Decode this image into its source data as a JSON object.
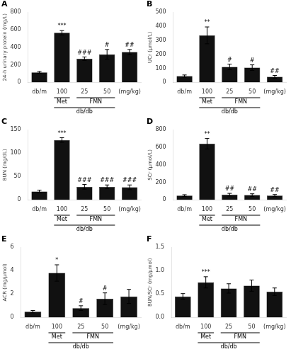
{
  "chart_data": [
    {
      "type": "bar",
      "title": "A",
      "ylabel": "24-h urinary protein (mg/L)",
      "categories": [
        "db/m",
        "100",
        "25",
        "50",
        "(mg/kg)"
      ],
      "values": [
        115,
        565,
        270,
        320,
        345
      ],
      "errors": [
        10,
        25,
        20,
        55,
        30
      ],
      "color": "#111111",
      "ylim": [
        0,
        800
      ],
      "yticks": [
        0,
        200,
        400,
        600,
        800
      ],
      "grid": false,
      "annotations": [
        {
          "category": "100",
          "text": "***"
        },
        {
          "category": "25",
          "text": "###"
        },
        {
          "category": "50",
          "text": "#"
        },
        {
          "category": "(mg/kg)",
          "text": "##"
        }
      ],
      "brackets": [
        {
          "text": "Met",
          "from": "100",
          "to": "100"
        },
        {
          "text": "FMN",
          "from": "25",
          "to": "50"
        },
        {
          "text": "db/db",
          "from": "100",
          "to": "50"
        }
      ]
    },
    {
      "type": "bar",
      "title": "B",
      "ylabel": "UCr (μmol/L)",
      "categories": [
        "db/m",
        "100",
        "25",
        "50",
        "(mg/kg)"
      ],
      "values": [
        45,
        335,
        110,
        105,
        40
      ],
      "errors": [
        8,
        60,
        20,
        20,
        10
      ],
      "color": "#111111",
      "ylim": [
        0,
        500
      ],
      "yticks": [
        0,
        100,
        200,
        300,
        400,
        500
      ],
      "grid": false,
      "annotations": [
        {
          "category": "100",
          "text": "**"
        },
        {
          "category": "25",
          "text": "#"
        },
        {
          "category": "50",
          "text": "#"
        },
        {
          "category": "(mg/kg)",
          "text": "##"
        }
      ],
      "brackets": [
        {
          "text": "Met",
          "from": "100",
          "to": "100"
        },
        {
          "text": "FMN",
          "from": "25",
          "to": "50"
        },
        {
          "text": "db/db",
          "from": "100",
          "to": "50"
        }
      ]
    },
    {
      "type": "bar",
      "title": "C",
      "ylabel": "BUN (mg/dL)",
      "categories": [
        "db/m",
        "100",
        "25",
        "50",
        "(mg/kg)"
      ],
      "values": [
        18,
        128,
        28,
        28,
        27
      ],
      "errors": [
        3,
        5,
        5,
        4,
        5
      ],
      "color": "#111111",
      "ylim": [
        0,
        150
      ],
      "yticks": [
        0,
        50,
        100,
        150
      ],
      "grid": false,
      "annotations": [
        {
          "category": "100",
          "text": "***"
        },
        {
          "category": "25",
          "text": "###"
        },
        {
          "category": "50",
          "text": "###"
        },
        {
          "category": "(mg/kg)",
          "text": "###"
        }
      ],
      "brackets": [
        {
          "text": "Met",
          "from": "100",
          "to": "100"
        },
        {
          "text": "FMN",
          "from": "25",
          "to": "50"
        },
        {
          "text": "db/db",
          "from": "100",
          "to": "50"
        }
      ]
    },
    {
      "type": "bar",
      "title": "D",
      "ylabel": "SCr (μmol/L)",
      "categories": [
        "db/m",
        "100",
        "25",
        "50",
        "(mg/kg)"
      ],
      "values": [
        50,
        640,
        60,
        55,
        50
      ],
      "errors": [
        10,
        60,
        15,
        15,
        12
      ],
      "color": "#111111",
      "ylim": [
        0,
        800
      ],
      "yticks": [
        0,
        200,
        400,
        600,
        800
      ],
      "grid": false,
      "annotations": [
        {
          "category": "100",
          "text": "**"
        },
        {
          "category": "25",
          "text": "##"
        },
        {
          "category": "50",
          "text": "##"
        },
        {
          "category": "(mg/kg)",
          "text": "##"
        }
      ],
      "brackets": [
        {
          "text": "Met",
          "from": "100",
          "to": "100"
        },
        {
          "text": "FMN",
          "from": "25",
          "to": "50"
        },
        {
          "text": "db/db",
          "from": "100",
          "to": "50"
        }
      ]
    },
    {
      "type": "bar",
      "title": "E",
      "ylabel": "ACR (mg/μmol)",
      "categories": [
        "db/m",
        "100",
        "25",
        "50",
        "(mg/kg)"
      ],
      "values": [
        0.5,
        3.8,
        0.8,
        1.6,
        1.8
      ],
      "errors": [
        0.1,
        0.7,
        0.2,
        0.5,
        0.6
      ],
      "color": "#111111",
      "ylim": [
        0,
        6
      ],
      "yticks": [
        0,
        2,
        4,
        6
      ],
      "grid": false,
      "annotations": [
        {
          "category": "100",
          "text": "*"
        },
        {
          "category": "25",
          "text": "#"
        },
        {
          "category": "50",
          "text": "#"
        }
      ],
      "brackets": [
        {
          "text": "Met",
          "from": "100",
          "to": "100"
        },
        {
          "text": "FMN",
          "from": "25",
          "to": "50"
        },
        {
          "text": "db/db",
          "from": "100",
          "to": "50"
        }
      ]
    },
    {
      "type": "bar",
      "title": "F",
      "ylabel": "BUN/SCr (mg/μmol)",
      "categories": [
        "db/m",
        "100",
        "25",
        "50",
        "(mg/kg)"
      ],
      "values": [
        0.45,
        0.75,
        0.62,
        0.68,
        0.55
      ],
      "errors": [
        0.06,
        0.12,
        0.1,
        0.12,
        0.08
      ],
      "color": "#111111",
      "ylim": [
        0,
        1.5
      ],
      "yticks": [
        {
          "value": 0,
          "label": "0.0"
        },
        0.5,
        {
          "value": 1,
          "label": "1.0"
        },
        1.5
      ],
      "grid": false,
      "annotations": [
        {
          "category": "100",
          "text": "***"
        }
      ],
      "brackets": [
        {
          "text": "Met",
          "from": "100",
          "to": "100"
        },
        {
          "text": "FMN",
          "from": "25",
          "to": "50"
        },
        {
          "text": "db/db",
          "from": "100",
          "to": "50"
        }
      ]
    }
  ]
}
